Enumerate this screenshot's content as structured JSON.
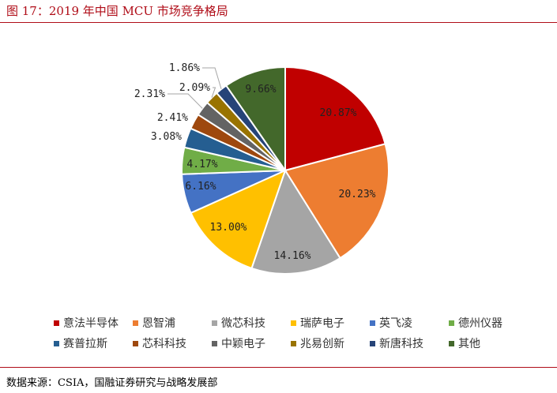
{
  "header": {
    "title": "图 17：2019 年中国 MCU 市场竞争格局"
  },
  "footer": {
    "source": "数据来源：CSIA，国融证券研究与战略发展部"
  },
  "chart_data": {
    "type": "pie",
    "title": "",
    "start_angle_deg": 0,
    "direction": "clockwise",
    "legend_placement": "bottom",
    "slices": [
      {
        "label": "意法半导体",
        "value": 20.87,
        "display": "20.87%",
        "color": "#c00000"
      },
      {
        "label": "恩智浦",
        "value": 20.23,
        "display": "20.23%",
        "color": "#ed7d31"
      },
      {
        "label": "微芯科技",
        "value": 14.16,
        "display": "14.16%",
        "color": "#a5a5a5"
      },
      {
        "label": "瑞萨电子",
        "value": 13.0,
        "display": "13.00%",
        "color": "#ffc000"
      },
      {
        "label": "英飞凌",
        "value": 6.16,
        "display": "6.16%",
        "color": "#4472c4"
      },
      {
        "label": "德州仪器",
        "value": 4.17,
        "display": "4.17%",
        "color": "#70ad47"
      },
      {
        "label": "赛普拉斯",
        "value": 3.08,
        "display": "3.08%",
        "color": "#255e91"
      },
      {
        "label": "芯科科技",
        "value": 2.41,
        "display": "2.41%",
        "color": "#9e480e"
      },
      {
        "label": "中颖电子",
        "value": 2.31,
        "display": "2.31%",
        "color": "#636363"
      },
      {
        "label": "兆易创新",
        "value": 2.09,
        "display": "2.09%",
        "color": "#997300"
      },
      {
        "label": "新唐科技",
        "value": 1.86,
        "display": "1.86%",
        "color": "#264478"
      },
      {
        "label": "其他",
        "value": 9.66,
        "display": "9.66%",
        "color": "#43682b"
      }
    ]
  }
}
